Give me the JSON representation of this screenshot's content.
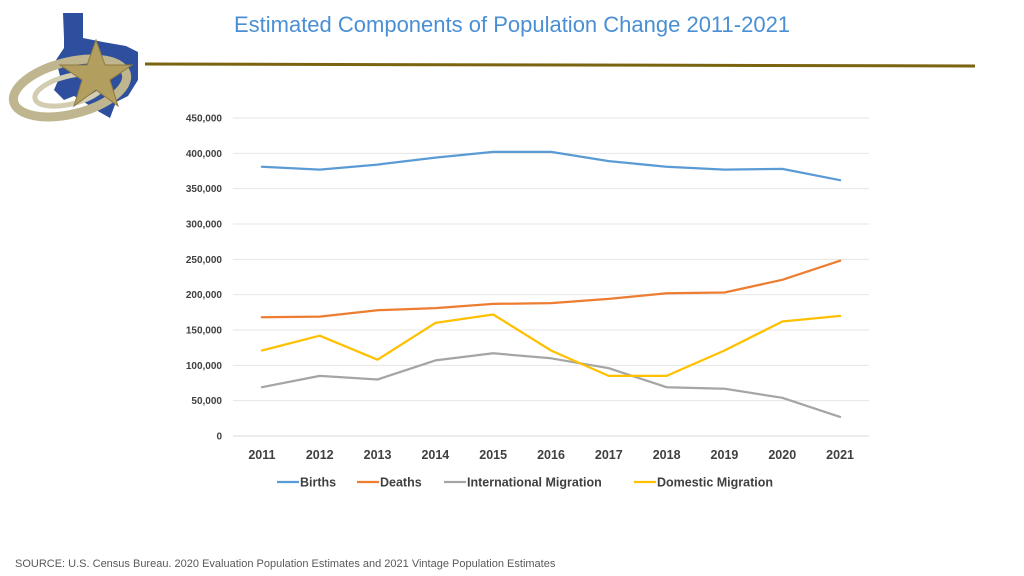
{
  "title": "Estimated Components of Population Change 2011-2021",
  "source": "SOURCE: U.S. Census Bureau. 2020 Evaluation Population Estimates and 2021 Vintage Population Estimates",
  "colors": {
    "title": "#4A8FD4",
    "rule": "#7A6410",
    "births": "#5B9BD5",
    "deaths": "#ED7D31",
    "international": "#A5A5A5",
    "domestic": "#FFC000"
  },
  "chart_data": {
    "type": "line",
    "title": "Estimated Components of Population Change 2011-2021",
    "xlabel": "",
    "ylabel": "",
    "ylim": [
      0,
      450000
    ],
    "yticks": [
      "0",
      "50,000",
      "100,000",
      "150,000",
      "200,000",
      "250,000",
      "300,000",
      "350,000",
      "400,000",
      "450,000"
    ],
    "categories": [
      "2011",
      "2012",
      "2013",
      "2014",
      "2015",
      "2016",
      "2017",
      "2018",
      "2019",
      "2020",
      "2021"
    ],
    "grid": true,
    "legend": "bottom",
    "series": [
      {
        "name": "Births",
        "color_key": "births",
        "values": [
          381000,
          377000,
          384000,
          394000,
          402000,
          402000,
          389000,
          381000,
          377000,
          378000,
          362000
        ]
      },
      {
        "name": "Deaths",
        "color_key": "deaths",
        "values": [
          168000,
          169000,
          178000,
          181000,
          187000,
          188000,
          194000,
          202000,
          203000,
          221000,
          248000
        ]
      },
      {
        "name": "International Migration",
        "color_key": "international",
        "values": [
          69000,
          85000,
          80000,
          107000,
          117000,
          110000,
          96000,
          69000,
          67000,
          54000,
          27000
        ]
      },
      {
        "name": "Domestic Migration",
        "color_key": "domestic",
        "values": [
          121000,
          142000,
          108000,
          160000,
          172000,
          121000,
          85000,
          85000,
          121000,
          162000,
          170000
        ]
      }
    ]
  }
}
